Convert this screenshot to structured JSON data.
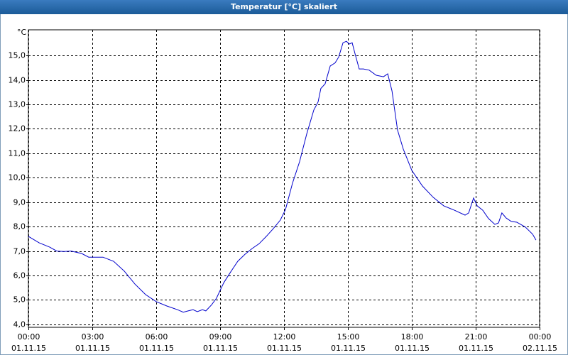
{
  "chart_data": {
    "type": "line",
    "title": "Temperatur [°C] skaliert",
    "y_unit": "°C",
    "color": "#0000cc",
    "grid": true,
    "xlim": [
      0,
      24
    ],
    "ylim": [
      3.88,
      16.05
    ],
    "xticks": [
      {
        "value": 0,
        "label": "00:00"
      },
      {
        "value": 3,
        "label": "03:00"
      },
      {
        "value": 6,
        "label": "06:00"
      },
      {
        "value": 9,
        "label": "09:00"
      },
      {
        "value": 12,
        "label": "12:00"
      },
      {
        "value": 15,
        "label": "15:00"
      },
      {
        "value": 18,
        "label": "18:00"
      },
      {
        "value": 21,
        "label": "21:00"
      },
      {
        "value": 24,
        "label": "00:00"
      }
    ],
    "xtick_dates": [
      "01.11.15",
      "01.11.15",
      "01.11.15",
      "01.11.15",
      "01.11.15",
      "01.11.15",
      "01.11.15",
      "01.11.15",
      "02.11.15"
    ],
    "yticks": [
      {
        "value": 4,
        "label": "4,0"
      },
      {
        "value": 5,
        "label": "5,0"
      },
      {
        "value": 6,
        "label": "6,0"
      },
      {
        "value": 7,
        "label": "7,0"
      },
      {
        "value": 8,
        "label": "8,0"
      },
      {
        "value": 9,
        "label": "9,0"
      },
      {
        "value": 10,
        "label": "10,0"
      },
      {
        "value": 11,
        "label": "11,0"
      },
      {
        "value": 12,
        "label": "12,0"
      },
      {
        "value": 13,
        "label": "13,0"
      },
      {
        "value": 14,
        "label": "14,0"
      },
      {
        "value": 15,
        "label": "15,0"
      }
    ],
    "x": [
      0,
      0.5,
      1.0,
      1.33,
      1.67,
      2.0,
      2.5,
      2.83,
      3.5,
      4.0,
      4.5,
      5.0,
      5.5,
      6.0,
      6.5,
      7.0,
      7.27,
      7.5,
      7.73,
      7.93,
      8.17,
      8.33,
      8.6,
      8.83,
      9.17,
      9.5,
      9.83,
      10.17,
      10.5,
      10.83,
      11.17,
      11.5,
      11.83,
      12.07,
      12.4,
      12.73,
      13.07,
      13.4,
      13.6,
      13.73,
      13.93,
      14.17,
      14.4,
      14.57,
      14.77,
      14.93,
      15.07,
      15.2,
      15.33,
      15.53,
      15.73,
      16.0,
      16.33,
      16.67,
      16.87,
      17.07,
      17.33,
      17.6,
      18.0,
      18.5,
      19.0,
      19.5,
      20.0,
      20.5,
      20.67,
      20.9,
      21.07,
      21.33,
      21.6,
      21.9,
      22.07,
      22.23,
      22.43,
      22.67,
      22.93,
      23.33,
      23.67,
      23.83
    ],
    "values": [
      7.6,
      7.34,
      7.16,
      7.0,
      6.98,
      7.0,
      6.9,
      6.75,
      6.75,
      6.58,
      6.18,
      5.65,
      5.22,
      4.93,
      4.75,
      4.6,
      4.5,
      4.55,
      4.6,
      4.52,
      4.6,
      4.55,
      4.8,
      5.07,
      5.7,
      6.15,
      6.58,
      6.87,
      7.1,
      7.3,
      7.6,
      7.92,
      8.27,
      8.7,
      9.78,
      10.65,
      11.8,
      12.77,
      13.1,
      13.65,
      13.84,
      14.57,
      14.7,
      14.94,
      15.52,
      15.58,
      15.47,
      15.52,
      15.09,
      14.45,
      14.45,
      14.4,
      14.19,
      14.13,
      14.25,
      13.55,
      11.95,
      11.17,
      10.3,
      9.66,
      9.2,
      8.85,
      8.67,
      8.47,
      8.56,
      9.17,
      8.85,
      8.67,
      8.33,
      8.09,
      8.15,
      8.56,
      8.35,
      8.21,
      8.18,
      7.98,
      7.69,
      7.45
    ]
  }
}
